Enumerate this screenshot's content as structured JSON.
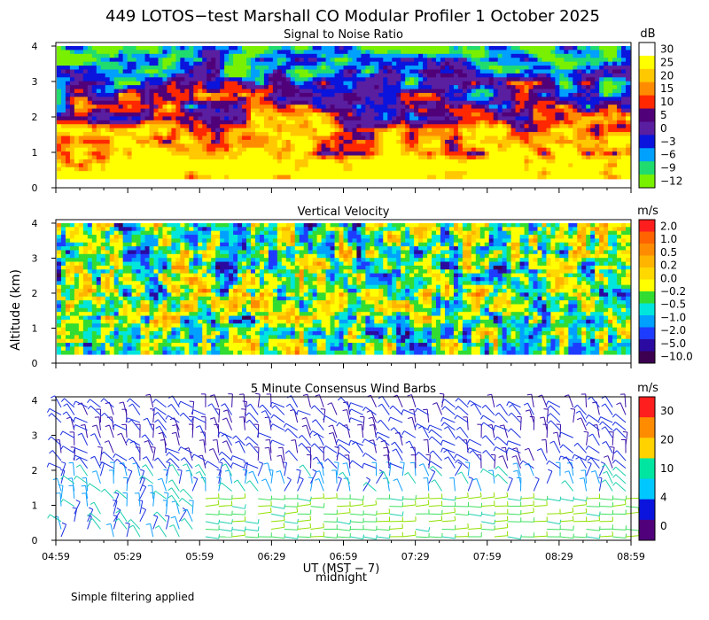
{
  "title": "449 LOTOS−test Marshall CO Modular Profiler  1 October 2025",
  "footnote": "Simple filtering applied",
  "chart_data": [
    {
      "type": "heatmap",
      "title": "Signal to Noise Ratio",
      "xlabel": "UT (MST − 7)",
      "ylabel": "Altitude (km)",
      "x_ticks": [
        "04:59",
        "05:29",
        "05:59",
        "06:29",
        "06:59",
        "07:29",
        "07:59",
        "08:29",
        "08:59"
      ],
      "y_ticks": [
        "0",
        "1",
        "2",
        "3",
        "4"
      ],
      "ylim": [
        0,
        4.1
      ],
      "colorbar": {
        "unit": "dB",
        "labels": [
          "30",
          "25",
          "20",
          "15",
          "10",
          "5",
          "0",
          "−3",
          "−6",
          "−9",
          "−12"
        ],
        "colors": [
          "#ffffff",
          "#ffff00",
          "#ffc800",
          "#ff8c00",
          "#ff2800",
          "#500078",
          "#5a1ea0",
          "#0a14dc",
          "#00a0ff",
          "#20dc6e",
          "#78f000"
        ]
      }
    },
    {
      "type": "heatmap",
      "title": "Vertical Velocity",
      "xlabel": "UT (MST − 7)",
      "ylabel": "Altitude (km)",
      "x_ticks": [
        "04:59",
        "05:29",
        "05:59",
        "06:29",
        "06:59",
        "07:29",
        "07:59",
        "08:29",
        "08:59"
      ],
      "y_ticks": [
        "0",
        "1",
        "2",
        "3",
        "4"
      ],
      "ylim": [
        0,
        4.1
      ],
      "colorbar": {
        "unit": "m/s",
        "labels": [
          "2.0",
          "1.0",
          "0.5",
          "0.2",
          "0.0",
          "−0.2",
          "−0.5",
          "−1.0",
          "−2.0",
          "−5.0",
          "−10.0"
        ],
        "colors": [
          "#ff1e1e",
          "#ff6400",
          "#ff8c00",
          "#ffb400",
          "#ffd800",
          "#ffff00",
          "#32dc32",
          "#00e6dc",
          "#00a0ff",
          "#1e3cff",
          "#2a0aa0",
          "#3c0050"
        ]
      }
    },
    {
      "type": "wind_barbs",
      "title": "5 Minute Consensus Wind Barbs",
      "xlabel": "UT (MST − 7)",
      "ylabel": "Altitude (km)",
      "x_ticks": [
        "04:59",
        "05:29",
        "05:59",
        "06:29",
        "06:59",
        "07:29",
        "07:59",
        "08:29",
        "08:59"
      ],
      "y_ticks": [
        "0",
        "1",
        "2",
        "3",
        "4"
      ],
      "ylim": [
        0,
        4.1
      ],
      "colorbar": {
        "unit": "m/s",
        "labels": [
          "30",
          "20",
          "10",
          "4",
          "0"
        ],
        "colors": [
          "#ff1e1e",
          "#ff8c00",
          "#ffd200",
          "#00e6a0",
          "#00c8ff",
          "#0a14dc",
          "#50007a"
        ]
      }
    }
  ],
  "x_axis_note": "midnight",
  "shared_xlabel": "UT (MST − 7)",
  "shared_ylabel": "Altitude (km)"
}
